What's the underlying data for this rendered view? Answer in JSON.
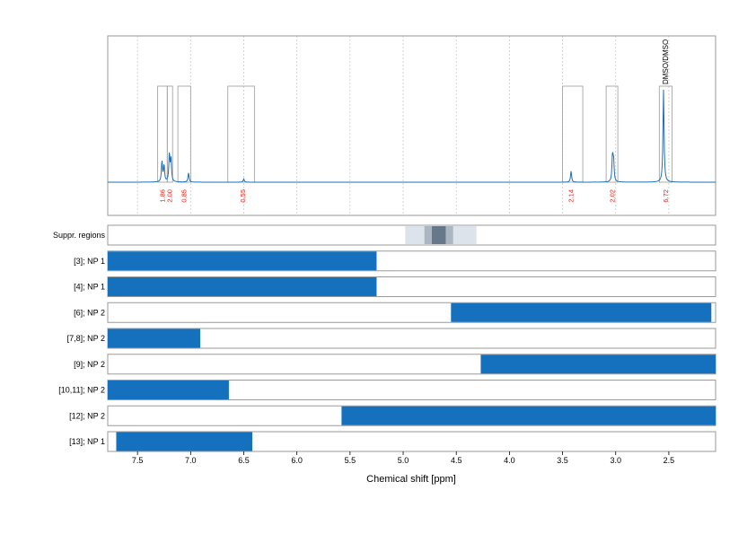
{
  "chart_data": {
    "type": "nmr-spectrum-with-ranges",
    "xlabel": "Chemical shift [ppm]",
    "xlim": [
      7.78,
      2.06
    ],
    "xticks": [
      7.5,
      7.0,
      6.5,
      6.0,
      5.5,
      5.0,
      4.5,
      4.0,
      3.5,
      3.0,
      2.5
    ],
    "xtick_labels": [
      "7.5",
      "7.0",
      "6.5",
      "6.0",
      "5.5",
      "5.0",
      "4.5",
      "4.0",
      "3.5",
      "3.0",
      "2.5"
    ],
    "spectrum": {
      "color": "#1f6fb2",
      "baseline": 0.0,
      "peaks": [
        {
          "x": 7.27,
          "h": 0.22
        },
        {
          "x": 7.25,
          "h": 0.18
        },
        {
          "x": 7.2,
          "h": 0.3
        },
        {
          "x": 7.185,
          "h": 0.24
        },
        {
          "x": 7.02,
          "h": 0.1
        },
        {
          "x": 6.5,
          "h": 0.035
        },
        {
          "x": 3.42,
          "h": 0.12
        },
        {
          "x": 3.03,
          "h": 0.28
        },
        {
          "x": 3.02,
          "h": 0.22
        },
        {
          "x": 2.55,
          "h": 1.0
        }
      ]
    },
    "integrations": [
      {
        "x1": 7.31,
        "x2": 7.22,
        "label": "1.86",
        "label_x": 7.265
      },
      {
        "x1": 7.22,
        "x2": 7.17,
        "label": "2.00",
        "label_x": 7.195
      },
      {
        "x1": 7.12,
        "x2": 7.0,
        "label": "0.85",
        "label_x": 7.06
      },
      {
        "x1": 6.65,
        "x2": 6.4,
        "label": "0.55",
        "label_x": 6.51
      },
      {
        "x1": 3.5,
        "x2": 3.31,
        "label": "2.14",
        "label_x": 3.42
      },
      {
        "x1": 3.09,
        "x2": 2.98,
        "label": "2.02",
        "label_x": 3.03
      },
      {
        "x1": 2.59,
        "x2": 2.47,
        "label": "6.72",
        "label_x": 2.53
      }
    ],
    "annotations": [
      {
        "text": "DMSO/DMSO",
        "x": 2.53
      }
    ],
    "suppressed_regions": {
      "label": "Suppr. regions",
      "regions": [
        {
          "x1": 4.98,
          "x2": 4.31,
          "shade": "#dde3ea"
        },
        {
          "x1": 4.8,
          "x2": 4.53,
          "shade": "#aab6c1"
        },
        {
          "x1": 4.73,
          "x2": 4.6,
          "shade": "#66788a"
        }
      ]
    },
    "series": [
      {
        "name": "[3]; NP 1",
        "x1": 7.78,
        "x2": 5.25
      },
      {
        "name": "[4]; NP 1",
        "x1": 7.78,
        "x2": 5.25
      },
      {
        "name": "[6]; NP 2",
        "x1": 4.55,
        "x2": 2.1
      },
      {
        "name": "[7,8]; NP 2",
        "x1": 7.78,
        "x2": 6.91
      },
      {
        "name": "[9]; NP 2",
        "x1": 4.27,
        "x2": 2.06
      },
      {
        "name": "[10,11]; NP 2",
        "x1": 7.78,
        "x2": 6.64
      },
      {
        "name": "[12]; NP 2",
        "x1": 5.58,
        "x2": 2.06
      },
      {
        "name": "[13]; NP 1",
        "x1": 7.7,
        "x2": 6.42
      }
    ],
    "colors": {
      "bar": "#1570bd",
      "spectrum": "#1f6fb2",
      "integral_label": "#e0241b",
      "frame": "#9a9a9a",
      "grid": "#c8c8c8"
    }
  }
}
